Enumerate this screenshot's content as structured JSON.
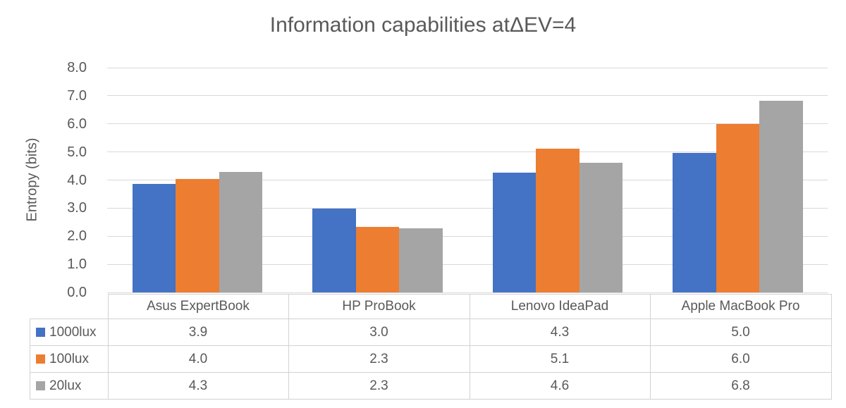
{
  "chart_data": {
    "type": "bar",
    "title": "Information capabilities atΔEV=4",
    "ylabel": "Entropy (bits)",
    "xlabel": "",
    "categories": [
      "Asus ExpertBook",
      "HP ProBook",
      "Lenovo IdeaPad",
      "Apple MacBook Pro"
    ],
    "series": [
      {
        "name": "1000lux",
        "color": "#4472C4",
        "values": [
          3.87,
          2.98,
          4.27,
          4.97
        ]
      },
      {
        "name": "100lux",
        "color": "#ED7D31",
        "values": [
          4.04,
          2.33,
          5.12,
          6.0
        ]
      },
      {
        "name": "20lux",
        "color": "#A5A5A5",
        "values": [
          4.3,
          2.28,
          4.62,
          6.82
        ]
      }
    ],
    "table_rows": [
      {
        "label": "1000lux",
        "cells": [
          "3.9",
          "3.0",
          "4.3",
          "5.0"
        ]
      },
      {
        "label": "100lux",
        "cells": [
          "4.0",
          "2.3",
          "5.1",
          "6.0"
        ]
      },
      {
        "label": "20lux",
        "cells": [
          "4.3",
          "2.3",
          "4.6",
          "6.8"
        ]
      }
    ],
    "ylim": [
      0,
      8
    ],
    "ytick_step": 1,
    "ytick_decimals": 1,
    "grid": true,
    "legend_position": "data-table-left-column",
    "colors": {
      "grid": "#D9D9D9",
      "table_border": "#D2D2D2",
      "text": "#595959"
    }
  }
}
